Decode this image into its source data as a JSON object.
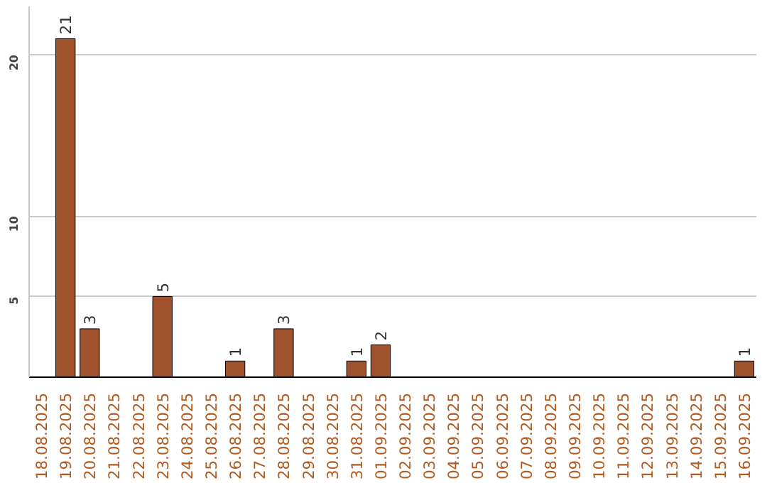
{
  "chart_data": {
    "type": "bar",
    "categories": [
      "18.08.2025",
      "19.08.2025",
      "20.08.2025",
      "21.08.2025",
      "22.08.2025",
      "23.08.2025",
      "24.08.2025",
      "25.08.2025",
      "26.08.2025",
      "27.08.2025",
      "28.08.2025",
      "29.08.2025",
      "30.08.2025",
      "31.08.2025",
      "01.09.2025",
      "02.09.2025",
      "03.09.2025",
      "04.09.2025",
      "05.09.2025",
      "06.09.2025",
      "07.09.2025",
      "08.09.2025",
      "09.09.2025",
      "10.09.2025",
      "11.09.2025",
      "12.09.2025",
      "13.09.2025",
      "14.09.2025",
      "15.09.2025",
      "16.09.2025"
    ],
    "values": [
      null,
      21,
      3,
      null,
      null,
      5,
      null,
      null,
      1,
      null,
      3,
      null,
      null,
      1,
      2,
      null,
      null,
      null,
      null,
      null,
      null,
      null,
      null,
      null,
      null,
      null,
      null,
      null,
      null,
      1
    ],
    "color": "#a0522d",
    "ylim": [
      0,
      23
    ],
    "yticks": [
      5,
      10,
      20
    ],
    "grid": "y",
    "data_labels": true
  }
}
